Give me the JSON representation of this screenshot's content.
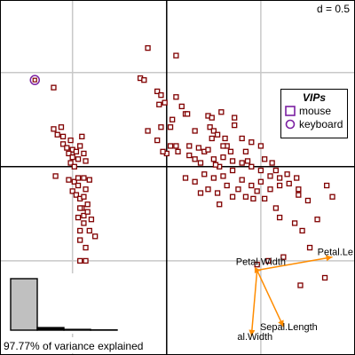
{
  "chart_data": {
    "type": "scatter",
    "title": "",
    "grid_label": "d = 0.5",
    "variance_text": "97.77% of variance explained",
    "eigenvalues": [
      1.0,
      0.05,
      0.015,
      0.005
    ],
    "points": [
      [
        -0.6,
        0.42
      ],
      [
        -0.6,
        0.2
      ],
      [
        -0.58,
        0.17
      ],
      [
        -0.56,
        0.21
      ],
      [
        -0.55,
        0.12
      ],
      [
        -0.53,
        0.1
      ],
      [
        -0.5,
        0.09
      ],
      [
        -0.52,
        0.07
      ],
      [
        -0.48,
        0.08
      ],
      [
        -0.5,
        0.05
      ],
      [
        -0.47,
        0.04
      ],
      [
        -0.51,
        0.02
      ],
      [
        -0.49,
        0.0
      ],
      [
        -0.46,
        0.11
      ],
      [
        -0.44,
        0.07
      ],
      [
        -0.43,
        0.03
      ],
      [
        -0.59,
        -0.05
      ],
      [
        -0.52,
        -0.07
      ],
      [
        -0.49,
        -0.08
      ],
      [
        -0.47,
        -0.1
      ],
      [
        -0.44,
        -0.06
      ],
      [
        -0.41,
        -0.07
      ],
      [
        -0.5,
        -0.13
      ],
      [
        -0.48,
        -0.15
      ],
      [
        -0.46,
        -0.17
      ],
      [
        -0.44,
        -0.16
      ],
      [
        -0.45,
        -0.22
      ],
      [
        -0.47,
        -0.27
      ],
      [
        -0.44,
        -0.3
      ],
      [
        -0.46,
        -0.34
      ],
      [
        -0.4,
        -0.28
      ],
      [
        -0.41,
        -0.34
      ],
      [
        -0.38,
        -0.37
      ],
      [
        -0.46,
        -0.39
      ],
      [
        -0.43,
        -0.43
      ],
      [
        -0.46,
        -0.5
      ],
      [
        -0.43,
        -0.5
      ],
      [
        -0.42,
        -0.59
      ],
      [
        -0.44,
        -0.66
      ],
      [
        -0.39,
        -0.72
      ],
      [
        -0.46,
        -0.22
      ],
      [
        -0.43,
        -0.12
      ],
      [
        -0.42,
        -0.2
      ],
      [
        -0.44,
        -0.26
      ],
      [
        -0.42,
        -0.24
      ],
      [
        -0.47,
        -0.06
      ],
      [
        -0.51,
        0.14
      ],
      [
        -0.55,
        0.16
      ],
      [
        -0.45,
        0.16
      ],
      [
        -0.1,
        0.63
      ],
      [
        -0.14,
        0.47
      ],
      [
        -0.12,
        0.46
      ],
      [
        -0.05,
        0.4
      ],
      [
        -0.03,
        0.38
      ],
      [
        -0.01,
        0.34
      ],
      [
        -0.04,
        0.33
      ],
      [
        0.05,
        0.59
      ],
      [
        0.05,
        0.37
      ],
      [
        0.08,
        0.32
      ],
      [
        0.1,
        0.28
      ],
      [
        0.03,
        0.25
      ],
      [
        -0.1,
        0.19
      ],
      [
        -0.05,
        0.14
      ],
      [
        0.0,
        0.07
      ],
      [
        0.02,
        0.11
      ],
      [
        -0.02,
        0.08
      ],
      [
        0.05,
        0.11
      ],
      [
        0.06,
        0.08
      ],
      [
        0.12,
        0.06
      ],
      [
        0.15,
        0.19
      ],
      [
        0.22,
        0.27
      ],
      [
        0.23,
        0.21
      ],
      [
        0.25,
        0.19
      ],
      [
        0.27,
        0.17
      ],
      [
        0.29,
        0.29
      ],
      [
        0.31,
        0.15
      ],
      [
        0.32,
        0.11
      ],
      [
        0.36,
        0.22
      ],
      [
        0.4,
        0.15
      ],
      [
        0.45,
        0.13
      ],
      [
        0.5,
        0.11
      ],
      [
        0.56,
        0.02
      ],
      [
        0.42,
        0.08
      ],
      [
        0.34,
        0.08
      ],
      [
        0.3,
        0.11
      ],
      [
        0.24,
        0.15
      ],
      [
        0.2,
        0.08
      ],
      [
        0.17,
        0.1
      ],
      [
        0.12,
        0.11
      ],
      [
        0.15,
        0.04
      ],
      [
        0.18,
        0.02
      ],
      [
        0.22,
        0.09
      ],
      [
        0.25,
        0.04
      ],
      [
        0.28,
        0.0
      ],
      [
        0.3,
        0.05
      ],
      [
        0.35,
        0.03
      ],
      [
        0.4,
        0.02
      ],
      [
        0.45,
        0.0
      ],
      [
        0.5,
        -0.02
      ],
      [
        0.55,
        -0.05
      ],
      [
        0.6,
        -0.1
      ],
      [
        0.35,
        -0.02
      ],
      [
        0.3,
        -0.05
      ],
      [
        0.25,
        -0.06
      ],
      [
        0.2,
        -0.04
      ],
      [
        0.15,
        -0.08
      ],
      [
        0.1,
        -0.06
      ],
      [
        0.4,
        -0.07
      ],
      [
        0.45,
        -0.1
      ],
      [
        0.55,
        -0.12
      ],
      [
        0.65,
        -0.09
      ],
      [
        0.75,
        -0.18
      ],
      [
        0.7,
        -0.15
      ],
      [
        0.85,
        -0.1
      ],
      [
        0.48,
        -0.13
      ],
      [
        0.52,
        -0.17
      ],
      [
        0.58,
        -0.22
      ],
      [
        0.6,
        -0.27
      ],
      [
        0.68,
        -0.3
      ],
      [
        0.72,
        -0.34
      ],
      [
        0.76,
        -0.43
      ],
      [
        0.62,
        -0.48
      ],
      [
        0.54,
        -0.5
      ],
      [
        0.48,
        -0.52
      ],
      [
        0.18,
        -0.14
      ],
      [
        0.22,
        -0.12
      ],
      [
        0.27,
        -0.14
      ],
      [
        0.35,
        -0.16
      ],
      [
        0.42,
        -0.16
      ],
      [
        0.5,
        -0.08
      ],
      [
        0.32,
        -0.1
      ],
      [
        0.38,
        -0.12
      ],
      [
        0.46,
        -0.17
      ],
      [
        0.43,
        0.03
      ],
      [
        0.52,
        0.04
      ],
      [
        0.58,
        -0.02
      ],
      [
        0.64,
        -0.04
      ],
      [
        0.69,
        -0.06
      ],
      [
        0.8,
        -0.28
      ],
      [
        0.88,
        -0.16
      ],
      [
        0.7,
        -0.12
      ],
      [
        0.6,
        -0.06
      ],
      [
        0.28,
        -0.2
      ],
      [
        0.26,
        0.01
      ],
      [
        0.36,
        0.26
      ],
      [
        0.24,
        0.26
      ],
      [
        0.11,
        0.28
      ],
      [
        0.02,
        0.21
      ],
      [
        -0.03,
        0.21
      ],
      [
        0.71,
        -0.63
      ],
      [
        0.84,
        -0.59
      ]
    ],
    "vip_points": [
      {
        "x": -0.7,
        "y": 0.46,
        "symbol": "circle"
      }
    ],
    "arrows": [
      {
        "label": "Petal.Le",
        "x": 0.88,
        "y": -0.48
      },
      {
        "label": "Petal.Width",
        "x": 0.5,
        "y": -0.55
      },
      {
        "label": "Sepal.Length",
        "x": 0.62,
        "y": -0.85
      },
      {
        "label": "al.Width",
        "x": 0.45,
        "y": -0.9
      }
    ],
    "arrow_origin": [
      0.48,
      -0.55
    ],
    "xlim": [
      -0.885,
      1.0
    ],
    "ylim": [
      -1.0,
      0.885
    ],
    "grid_step": 0.5,
    "legend": {
      "title": "VIPs",
      "placement": "right",
      "items": [
        {
          "label": "mouse",
          "symbol": "square"
        },
        {
          "label": "keyboard",
          "symbol": "circle"
        }
      ]
    },
    "colors": {
      "points": "#800000",
      "vip": "#7b1fa2",
      "arrows": "#ff8c00",
      "bars": "#c0c0c0"
    }
  }
}
